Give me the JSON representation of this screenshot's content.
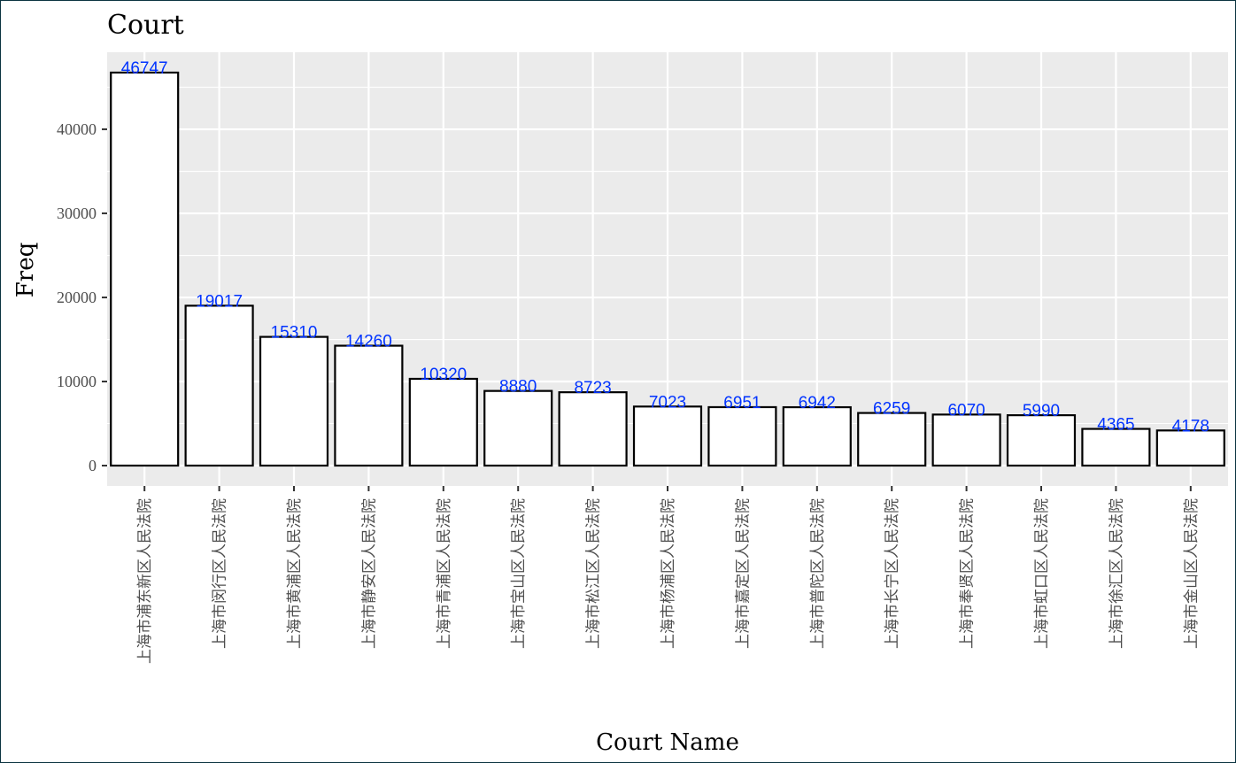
{
  "chart_data": {
    "type": "bar",
    "title": "Court",
    "xlabel": "Court Name",
    "ylabel": "Freq",
    "ylim": [
      0,
      47000
    ],
    "yticks": [
      0,
      10000,
      20000,
      30000,
      40000
    ],
    "ytick_labels": [
      "0",
      "10000",
      "20000",
      "30000",
      "40000"
    ],
    "categories": [
      "上海市浦东新区人民法院",
      "上海市闵行区人民法院",
      "上海市黄浦区人民法院",
      "上海市静安区人民法院",
      "上海市青浦区人民法院",
      "上海市宝山区人民法院",
      "上海市松江区人民法院",
      "上海市杨浦区人民法院",
      "上海市嘉定区人民法院",
      "上海市普陀区人民法院",
      "上海市长宁区人民法院",
      "上海市奉贤区人民法院",
      "上海市虹口区人民法院",
      "上海市徐汇区人民法院",
      "上海市金山区人民法院"
    ],
    "values": [
      46747,
      19017,
      15310,
      14260,
      10320,
      8880,
      8723,
      7023,
      6951,
      6942,
      6259,
      6070,
      5990,
      4365,
      4178
    ],
    "data_labels": [
      "46747",
      "19017",
      "15310",
      "14260",
      "10320",
      "8880",
      "8723",
      "7023",
      "6951",
      "6942",
      "6259",
      "6070",
      "5990",
      "4365",
      "4178"
    ],
    "grid": true,
    "legend": "none",
    "colors": {
      "panel_bg": "#ebebeb",
      "grid": "#ffffff",
      "bar_fill": "#ffffff",
      "bar_stroke": "#000000",
      "data_label": "#0033ff"
    }
  }
}
